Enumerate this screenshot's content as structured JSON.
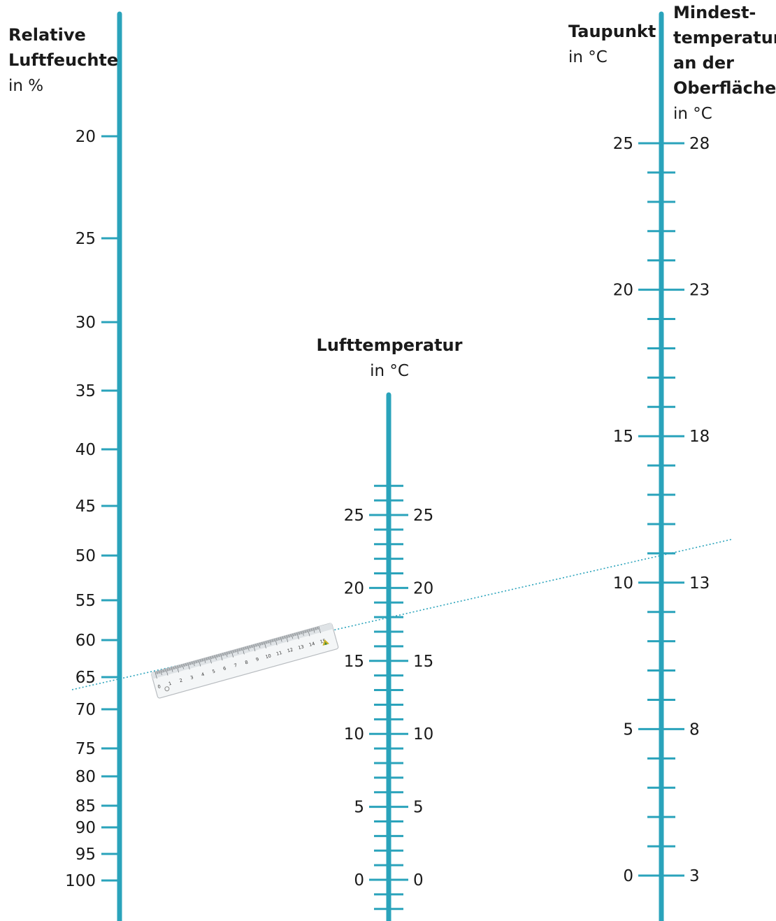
{
  "accent_color": "#2aa3bb",
  "left_axis": {
    "title_lines": [
      "Relative",
      "Luftfeuchte"
    ],
    "unit": "in %",
    "labels": [
      "20",
      "25",
      "30",
      "35",
      "40",
      "45",
      "50",
      "55",
      "60",
      "65",
      "70",
      "75",
      "80",
      "85",
      "90",
      "95",
      "100"
    ]
  },
  "middle_axis": {
    "title": "Lufttemperatur",
    "unit": "in °C",
    "labels": [
      "25",
      "20",
      "15",
      "10",
      "5",
      "0"
    ]
  },
  "right_axis": {
    "title_left": "Taupunkt",
    "unit_left": "in °C",
    "title_right_lines": [
      "Mindest-",
      "temperatur",
      "an der",
      "Oberfläche"
    ],
    "unit_right": "in °C",
    "labels_left": [
      "25",
      "20",
      "15",
      "10",
      "5",
      "0"
    ],
    "labels_right": [
      "28",
      "23",
      "18",
      "13",
      "8",
      "3"
    ]
  },
  "ruler": {
    "numbers": [
      "0",
      "1",
      "2",
      "3",
      "4",
      "5",
      "6",
      "7",
      "8",
      "9",
      "10",
      "11",
      "12",
      "13",
      "14",
      "15"
    ],
    "icon": "ruler-icon"
  },
  "reading_line": {
    "relative_humidity": 65,
    "air_temperature": 18,
    "dew_point": 11
  }
}
